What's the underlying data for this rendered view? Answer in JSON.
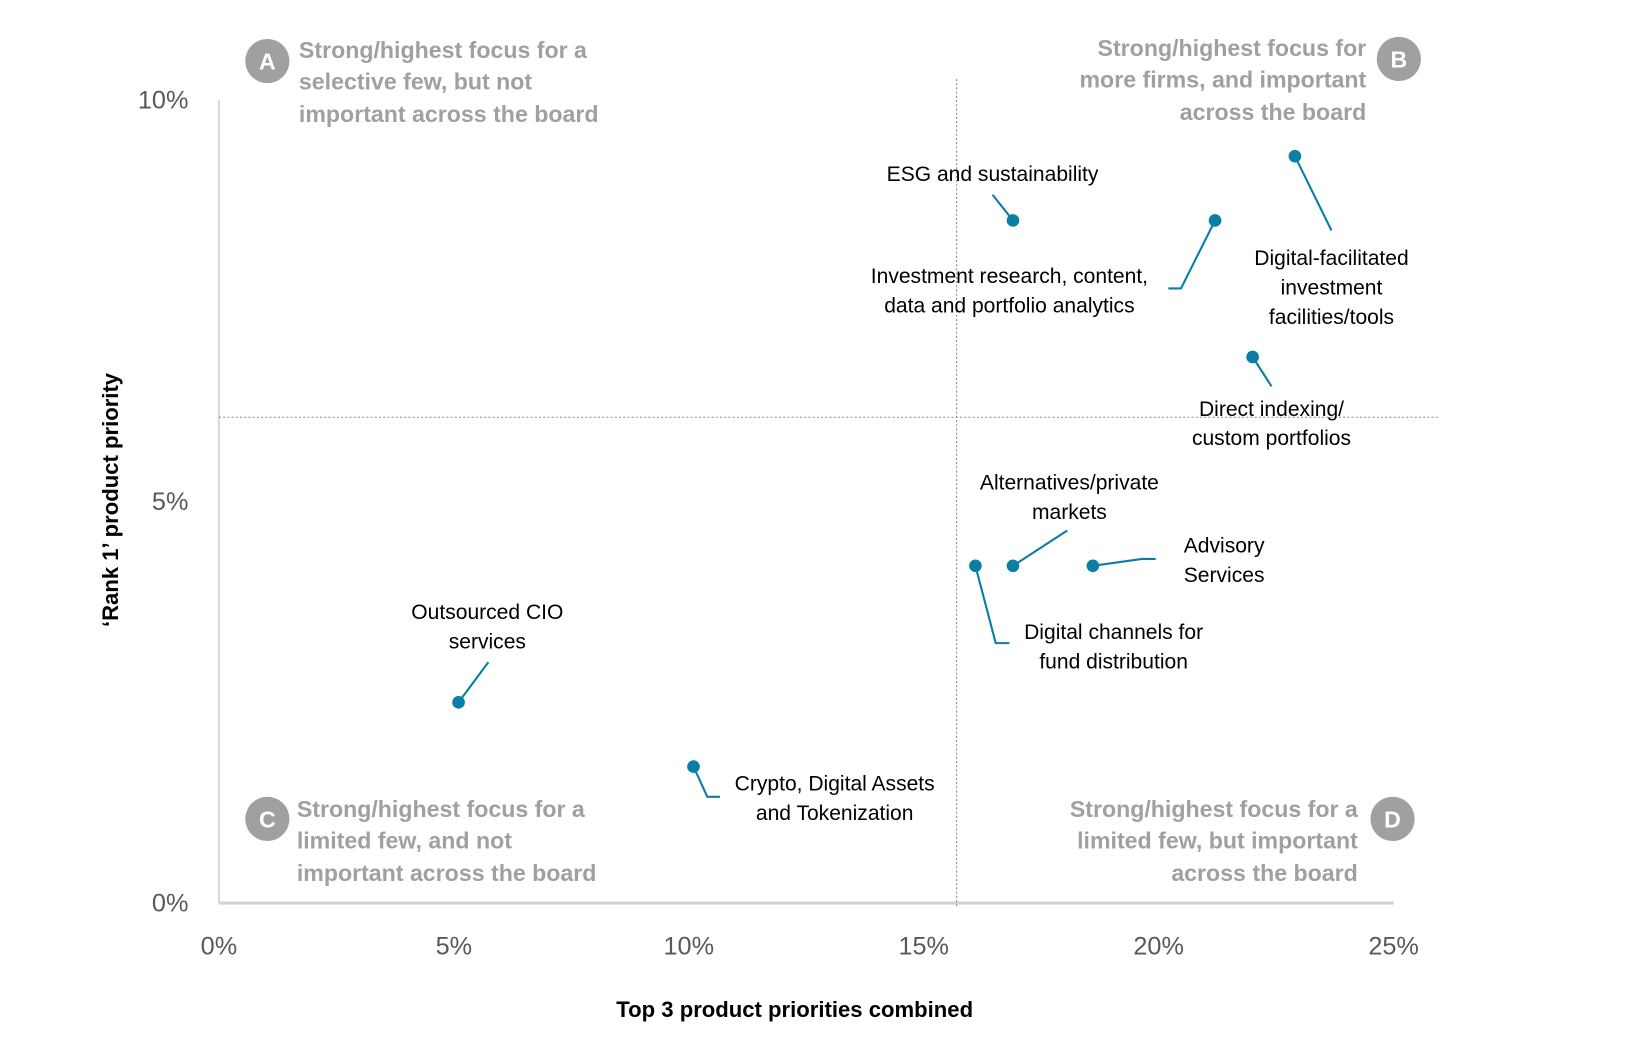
{
  "chart_data": {
    "type": "scatter",
    "title": "",
    "xlabel": "Top 3 product priorities combined",
    "ylabel": "‘Rank 1’ product priority",
    "xlim": [
      0,
      25
    ],
    "ylim": [
      0,
      10
    ],
    "x_ticks": [
      "0%",
      "5%",
      "10%",
      "15%",
      "20%",
      "25%"
    ],
    "x_tick_values": [
      0,
      5,
      10,
      15,
      20,
      25
    ],
    "y_ticks": [
      "0%",
      "5%",
      "10%"
    ],
    "y_tick_values": [
      0,
      5,
      10
    ],
    "grid": false,
    "reference_lines": {
      "x": 15.7,
      "y": 6.05
    },
    "point_color": "#0a7ea4",
    "points": [
      {
        "label": [
          "ESG and sustainability"
        ],
        "x": 16.9,
        "y": 8.5
      },
      {
        "label": [
          "Investment research, content,",
          "data and portfolio analytics"
        ],
        "x": 21.2,
        "y": 8.5
      },
      {
        "label": [
          "Digital-facilitated",
          "investment",
          "facilities/tools"
        ],
        "x": 22.9,
        "y": 9.3
      },
      {
        "label": [
          "Direct indexing/",
          "custom portfolios"
        ],
        "x": 22.0,
        "y": 6.8
      },
      {
        "label": [
          "Alternatives/private",
          "markets"
        ],
        "x": 16.9,
        "y": 4.2
      },
      {
        "label": [
          "Digital channels for",
          "fund distribution"
        ],
        "x": 16.1,
        "y": 4.2
      },
      {
        "label": [
          "Advisory",
          "Services"
        ],
        "x": 18.6,
        "y": 4.2
      },
      {
        "label": [
          "Outsourced CIO",
          "services"
        ],
        "x": 5.1,
        "y": 2.5
      },
      {
        "label": [
          "Crypto, Digital Assets",
          "and Tokenization"
        ],
        "x": 10.1,
        "y": 1.7
      }
    ],
    "quadrants": [
      {
        "letter": "A",
        "text": [
          "Strong/highest focus for a",
          "selective few, but not",
          "important across the board"
        ]
      },
      {
        "letter": "B",
        "text": [
          "Strong/highest focus for",
          "more firms, and important",
          "across the board"
        ]
      },
      {
        "letter": "C",
        "text": [
          "Strong/highest focus for a",
          "limited few, and not",
          "important across the board"
        ]
      },
      {
        "letter": "D",
        "text": [
          "Strong/highest focus for a",
          "limited few, but important",
          "across the board"
        ]
      }
    ],
    "quadrant_color": "#a0a0a0"
  }
}
